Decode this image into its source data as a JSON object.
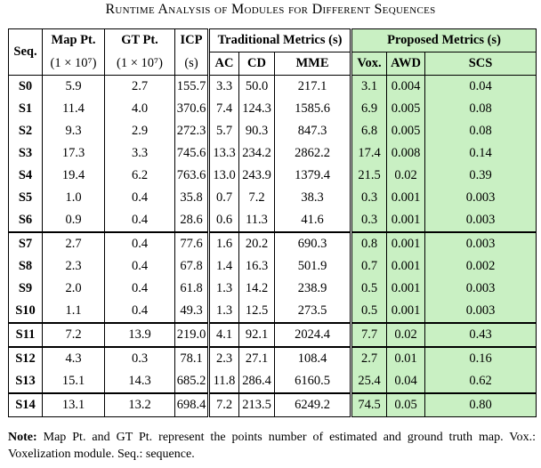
{
  "caption": "Runtime Analysis of Modules for Different Sequences",
  "header": {
    "seq": "Seq.",
    "map_pt": "Map Pt.",
    "map_pt_unit": "(1 × 10⁷)",
    "gt_pt": "GT Pt.",
    "gt_pt_unit": "(1 × 10⁷)",
    "icp": "ICP",
    "icp_unit": "(s)",
    "traditional": "Traditional Metrics (s)",
    "proposed": "Proposed Metrics (s)",
    "ac": "AC",
    "cd": "CD",
    "mme": "MME",
    "vox": "Vox.",
    "awd": "AWD",
    "scs": "SCS"
  },
  "groups": [
    {
      "rows": [
        {
          "seq": "S0",
          "map": "5.9",
          "gt": "2.7",
          "icp": "155.7",
          "ac": "3.3",
          "cd": "50.0",
          "mme": "217.1",
          "vox": "3.1",
          "awd": "0.004",
          "scs": "0.04"
        },
        {
          "seq": "S1",
          "map": "11.4",
          "gt": "4.0",
          "icp": "370.6",
          "ac": "7.4",
          "cd": "124.3",
          "mme": "1585.6",
          "vox": "6.9",
          "awd": "0.005",
          "scs": "0.08"
        },
        {
          "seq": "S2",
          "map": "9.3",
          "gt": "2.9",
          "icp": "272.3",
          "ac": "5.7",
          "cd": "90.3",
          "mme": "847.3",
          "vox": "6.8",
          "awd": "0.005",
          "scs": "0.08"
        },
        {
          "seq": "S3",
          "map": "17.3",
          "gt": "3.3",
          "icp": "745.6",
          "ac": "13.3",
          "cd": "234.2",
          "mme": "2862.2",
          "vox": "17.4",
          "awd": "0.008",
          "scs": "0.14"
        },
        {
          "seq": "S4",
          "map": "19.4",
          "gt": "6.2",
          "icp": "763.6",
          "ac": "13.0",
          "cd": "243.9",
          "mme": "1379.4",
          "vox": "21.5",
          "awd": "0.02",
          "scs": "0.39"
        },
        {
          "seq": "S5",
          "map": "1.0",
          "gt": "0.4",
          "icp": "35.8",
          "ac": "0.7",
          "cd": "7.2",
          "mme": "38.3",
          "vox": "0.3",
          "awd": "0.001",
          "scs": "0.003"
        },
        {
          "seq": "S6",
          "map": "0.9",
          "gt": "0.4",
          "icp": "28.6",
          "ac": "0.6",
          "cd": "11.3",
          "mme": "41.6",
          "vox": "0.3",
          "awd": "0.001",
          "scs": "0.003"
        }
      ]
    },
    {
      "rows": [
        {
          "seq": "S7",
          "map": "2.7",
          "gt": "0.4",
          "icp": "77.6",
          "ac": "1.6",
          "cd": "20.2",
          "mme": "690.3",
          "vox": "0.8",
          "awd": "0.001",
          "scs": "0.003"
        },
        {
          "seq": "S8",
          "map": "2.3",
          "gt": "0.4",
          "icp": "67.8",
          "ac": "1.4",
          "cd": "16.3",
          "mme": "501.9",
          "vox": "0.7",
          "awd": "0.001",
          "scs": "0.002"
        },
        {
          "seq": "S9",
          "map": "2.0",
          "gt": "0.4",
          "icp": "61.8",
          "ac": "1.3",
          "cd": "14.2",
          "mme": "238.9",
          "vox": "0.5",
          "awd": "0.001",
          "scs": "0.003"
        },
        {
          "seq": "S10",
          "map": "1.1",
          "gt": "0.4",
          "icp": "49.3",
          "ac": "1.3",
          "cd": "12.5",
          "mme": "273.5",
          "vox": "0.5",
          "awd": "0.001",
          "scs": "0.003"
        }
      ]
    },
    {
      "rows": [
        {
          "seq": "S11",
          "map": "7.2",
          "gt": "13.9",
          "icp": "219.0",
          "ac": "4.1",
          "cd": "92.1",
          "mme": "2024.4",
          "vox": "7.7",
          "awd": "0.02",
          "scs": "0.43"
        }
      ]
    },
    {
      "rows": [
        {
          "seq": "S12",
          "map": "4.3",
          "gt": "0.3",
          "icp": "78.1",
          "ac": "2.3",
          "cd": "27.1",
          "mme": "108.4",
          "vox": "2.7",
          "awd": "0.01",
          "scs": "0.16"
        },
        {
          "seq": "S13",
          "map": "15.1",
          "gt": "14.3",
          "icp": "685.2",
          "ac": "11.8",
          "cd": "286.4",
          "mme": "6160.5",
          "vox": "25.4",
          "awd": "0.04",
          "scs": "0.62"
        }
      ]
    },
    {
      "rows": [
        {
          "seq": "S14",
          "map": "13.1",
          "gt": "13.2",
          "icp": "698.4",
          "ac": "7.2",
          "cd": "213.5",
          "mme": "6249.2",
          "vox": "74.5",
          "awd": "0.05",
          "scs": "0.80"
        }
      ]
    }
  ],
  "note": {
    "label": "Note:",
    "text": " Map Pt. and GT Pt. represent the points number of estimated and ground truth map. Vox.: Voxelization module. Seq.: sequence."
  }
}
